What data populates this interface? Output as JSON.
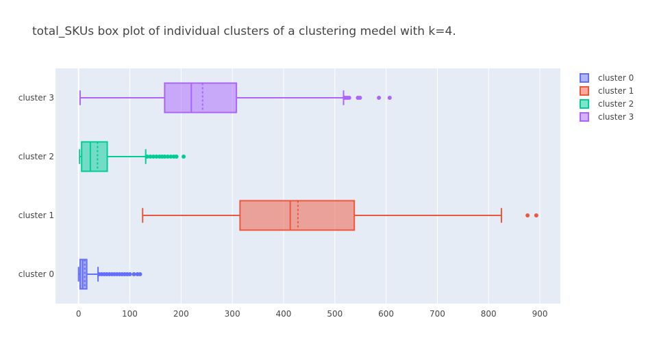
{
  "chart_data": {
    "type": "box",
    "orientation": "horizontal",
    "title": "total_SKUs box plot of individual clusters of a clustering medel with k=4.",
    "xlabel": "",
    "ylabel": "",
    "xlim": [
      -45,
      940
    ],
    "x_ticks": [
      0,
      100,
      200,
      300,
      400,
      500,
      600,
      700,
      800,
      900
    ],
    "x_tick_labels": [
      "0",
      "100",
      "200",
      "300",
      "400",
      "500",
      "600",
      "700",
      "800",
      "900"
    ],
    "categories": [
      "cluster 0",
      "cluster 1",
      "cluster 2",
      "cluster 3"
    ],
    "grid": true,
    "legend_position": "top-right",
    "series": [
      {
        "name": "cluster 0",
        "color": "#636efa",
        "min": 0,
        "q1": 3,
        "median": 8,
        "q3": 16,
        "max": 38,
        "mean": 12,
        "outliers": [
          40,
          45,
          50,
          55,
          60,
          65,
          70,
          75,
          80,
          85,
          90,
          95,
          100,
          108,
          115,
          120
        ]
      },
      {
        "name": "cluster 1",
        "color": "#ef553b",
        "min": 125,
        "q1": 315,
        "median": 413,
        "q3": 538,
        "max": 825,
        "mean": 428,
        "outliers": [
          876,
          893
        ]
      },
      {
        "name": "cluster 2",
        "color": "#00cc96",
        "min": 2,
        "q1": 6,
        "median": 23,
        "q3": 56,
        "max": 131,
        "mean": 37,
        "outliers": [
          134,
          140,
          146,
          152,
          158,
          163,
          168,
          174,
          180,
          186,
          191,
          205
        ]
      },
      {
        "name": "cluster 3",
        "color": "#ab63fa",
        "min": 3,
        "q1": 168,
        "median": 220,
        "q3": 308,
        "max": 517,
        "mean": 242,
        "outliers": [
          520,
          524,
          528,
          545,
          549,
          586,
          607
        ]
      }
    ]
  }
}
